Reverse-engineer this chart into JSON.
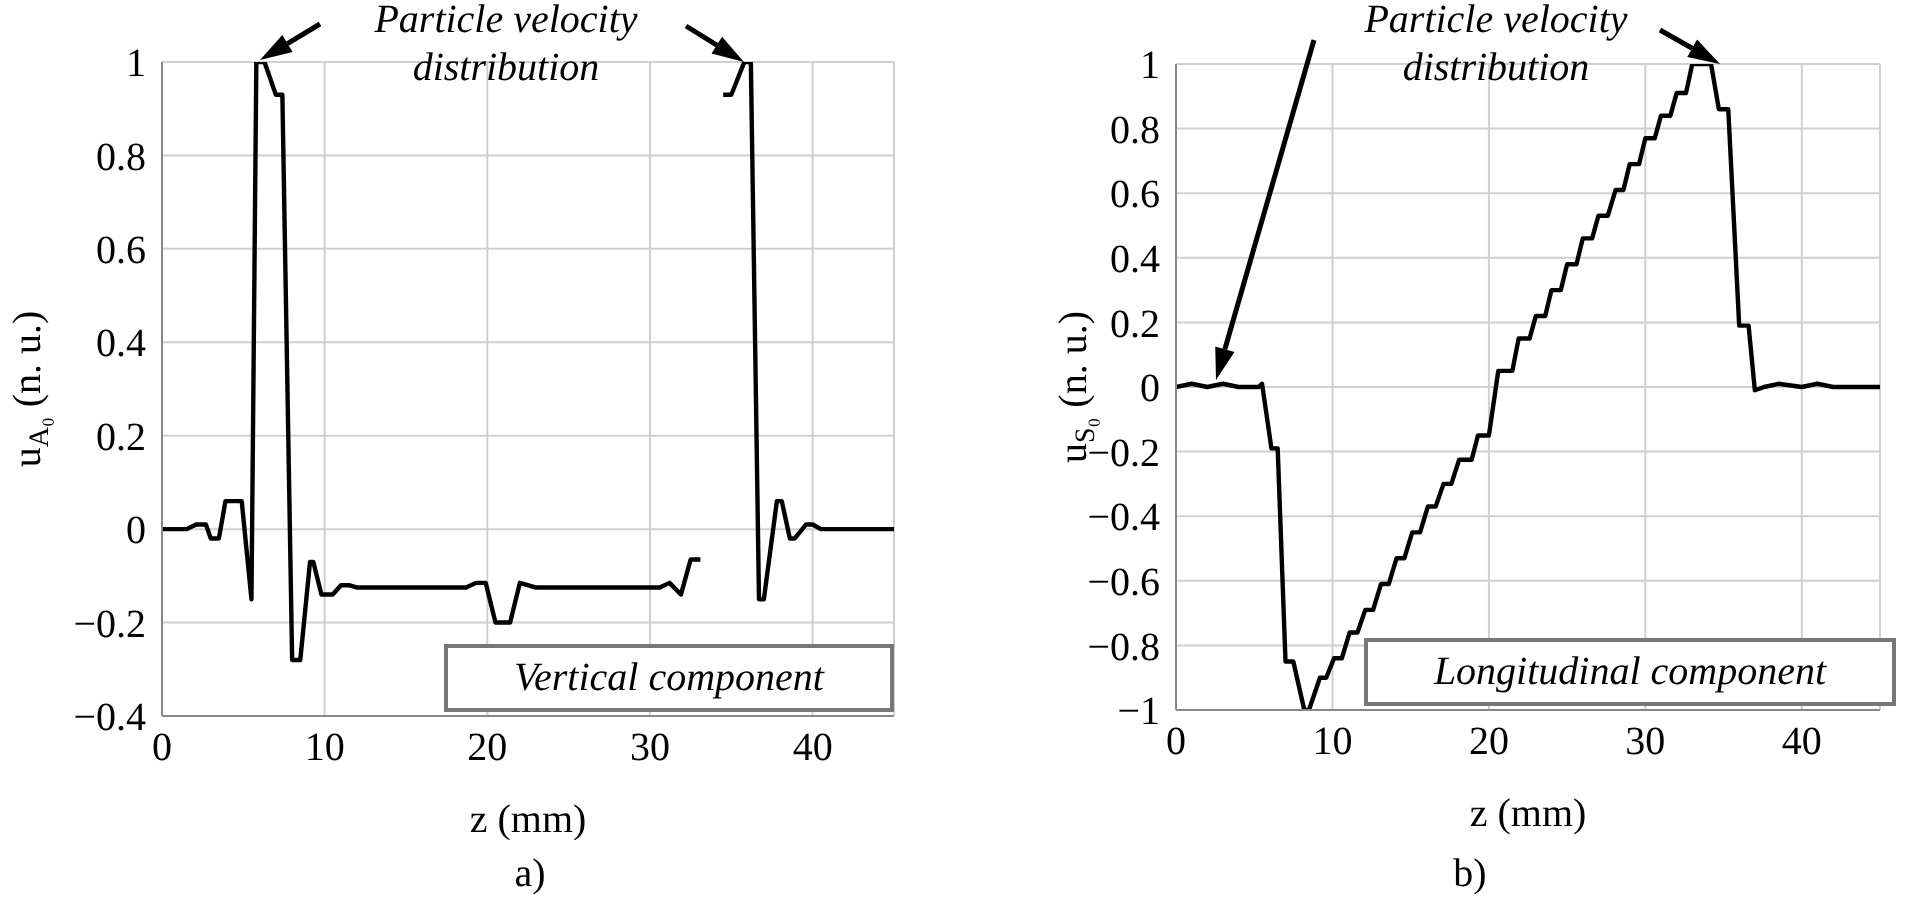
{
  "chart_data": [
    {
      "type": "line",
      "xlabel": "z (mm)",
      "ylabel": "u$_{A₀}$ (n. u.)",
      "xlim": [
        0,
        45
      ],
      "xticks": [
        0,
        10,
        20,
        30,
        40
      ],
      "ylim": [
        -0.4,
        1
      ],
      "yticks": [
        -0.4,
        -0.2,
        0,
        0.2,
        0.4,
        0.6,
        0.8,
        1
      ],
      "grid": true,
      "marker": "none",
      "line_style": "solid",
      "annotations": [
        "Particle velocity distribution",
        "Vertical component",
        "a)"
      ],
      "series": [
        {
          "color": "#000000",
          "x": [
            0,
            1.5,
            2.1,
            2.7,
            3.0,
            3.5,
            3.9,
            4.9,
            5.5,
            5.8,
            6.3,
            7.0,
            7.4,
            8.0,
            8.5,
            9.1,
            9.3,
            9.8,
            10.5,
            11.0,
            11.5,
            12,
            18.7,
            19.3,
            19.9,
            20.5,
            21.4,
            22.0,
            23.0,
            30.6,
            31.2,
            31.9,
            32.5,
            33.1,
            33.7,
            34.1,
            34.5,
            35.0,
            35.8,
            36.2,
            36.7,
            37.0,
            37.8,
            38.1,
            38.6,
            38.9,
            39.6,
            40.0,
            40.5,
            45
          ],
          "values": [
            0,
            0,
            0.01,
            0.01,
            -0.02,
            -0.02,
            0.06,
            0.06,
            -0.15,
            1,
            1,
            0.93,
            0.93,
            -0.28,
            -0.28,
            -0.07,
            -0.07,
            -0.14,
            -0.14,
            -0.12,
            -0.12,
            -0.125,
            -0.125,
            -0.115,
            -0.115,
            -0.2,
            -0.2,
            -0.115,
            -0.125,
            -0.125,
            -0.115,
            -0.14,
            -0.065,
            -0.065,
            null,
            null,
            0.93,
            0.93,
            1,
            1,
            -0.15,
            -0.15,
            0.06,
            0.06,
            -0.02,
            -0.02,
            0.01,
            0.01,
            0,
            0
          ]
        }
      ]
    },
    {
      "type": "line",
      "xlabel": "z (mm)",
      "ylabel": "u$_{S₀}$ (n. u.)",
      "xlim": [
        0,
        45
      ],
      "xticks": [
        0,
        10,
        20,
        30,
        40
      ],
      "ylim": [
        -1,
        1
      ],
      "yticks": [
        -1,
        -0.8,
        -0.6,
        -0.4,
        -0.2,
        0,
        0.2,
        0.4,
        0.6,
        0.8,
        1
      ],
      "grid": true,
      "marker": "none",
      "line_style": "solid",
      "annotations": [
        "Particle velocity distribution",
        "Longitudinal component",
        "b)"
      ],
      "series": [
        {
          "color": "#000000",
          "x": [
            0,
            1,
            2,
            3,
            4,
            5.3,
            5.5,
            6.1,
            6.5,
            7.0,
            7.5,
            8.2,
            8.5,
            9.2,
            9.6,
            10.1,
            10.6,
            11.1,
            11.6,
            12.1,
            12.6,
            13.1,
            13.6,
            14.1,
            14.6,
            15.1,
            15.6,
            16.1,
            16.6,
            17.1,
            17.6,
            18.1,
            18.9,
            19.3,
            20.0,
            20.6,
            21.5,
            21.9,
            22.6,
            23.0,
            23.6,
            24.0,
            24.6,
            25.0,
            25.6,
            26.0,
            26.6,
            27.0,
            27.6,
            28.1,
            28.6,
            29.0,
            29.6,
            30.0,
            30.6,
            31.0,
            31.6,
            32.0,
            32.6,
            33.0,
            33.6,
            34.2,
            34.7,
            35.3,
            36.0,
            36.6,
            37.0,
            37.6,
            38.5,
            40,
            41,
            42,
            45
          ],
          "values": [
            0,
            0.01,
            0,
            0.01,
            0,
            0,
            0.01,
            -0.19,
            -0.19,
            -0.85,
            -0.85,
            -1,
            -1,
            -0.9,
            -0.9,
            -0.84,
            -0.84,
            -0.76,
            -0.76,
            -0.69,
            -0.69,
            -0.61,
            -0.61,
            -0.53,
            -0.53,
            -0.45,
            -0.45,
            -0.37,
            -0.37,
            -0.3,
            -0.3,
            -0.225,
            -0.225,
            -0.15,
            -0.15,
            0.05,
            0.05,
            0.15,
            0.15,
            0.22,
            0.22,
            0.3,
            0.3,
            0.38,
            0.38,
            0.46,
            0.46,
            0.53,
            0.53,
            0.61,
            0.61,
            0.69,
            0.69,
            0.77,
            0.77,
            0.84,
            0.84,
            0.91,
            0.91,
            1,
            1,
            1,
            0.86,
            0.86,
            0.19,
            0.19,
            -0.01,
            0,
            0.01,
            0,
            0.01,
            0,
            0
          ]
        }
      ]
    }
  ]
}
